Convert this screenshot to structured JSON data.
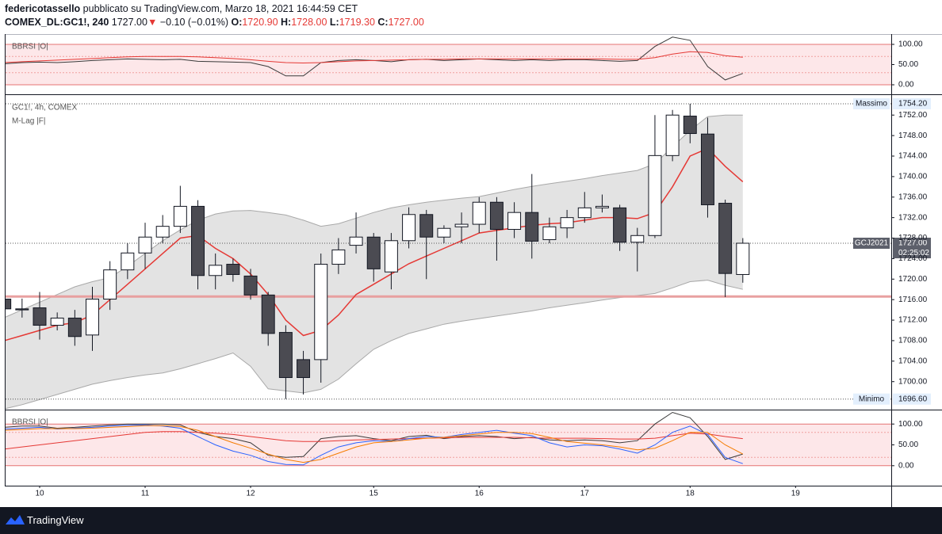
{
  "header": {
    "author": "federicotassello",
    "published": "pubblicato su TradingView.com, Marzo 18, 2021 16:44:59 CET",
    "symbol": "COMEX_DL:GC1!, 240",
    "last": "1727.00",
    "arrow": "▼",
    "change": "−0.10 (−0.01%)",
    "o_label": "O:",
    "o": "1720.90",
    "h_label": "H:",
    "h": "1728.00",
    "l_label": "L:",
    "l": "1719.30",
    "c_label": "C:",
    "c": "1727.00"
  },
  "footer": {
    "brand": "TradingView"
  },
  "chart_data": [
    {
      "type": "candlestick",
      "title": "GC1!, 4h, COMEX",
      "subtitle": "M-Lag |F|",
      "categories": [
        null,
        null,
        "10",
        null,
        null,
        null,
        null,
        null,
        "11",
        null,
        null,
        null,
        null,
        null,
        "12",
        null,
        null,
        null,
        null,
        null,
        null,
        "15",
        null,
        null,
        null,
        null,
        null,
        "16",
        null,
        null,
        null,
        null,
        null,
        "17",
        null,
        null,
        null,
        null,
        null,
        "18",
        null,
        null,
        null,
        null,
        null,
        "19"
      ],
      "open": [
        1716.1,
        1714.2,
        1714.4,
        1711,
        1712.4,
        1709.1,
        1716.1,
        1721.8,
        1725.1,
        1728.2,
        1730.3,
        1734.2,
        1720.7,
        1722.9,
        1720.6,
        1716.9,
        1709.6,
        1704.3,
        1704.3,
        1722.9,
        1726.6,
        1728.2,
        1721.4,
        1727.5,
        1732.6,
        1728.2,
        1730.2,
        1730.7,
        1735.0,
        1729.7,
        1733.0,
        1727.7,
        1730.0,
        1732.0,
        1733.9,
        1733.9,
        1727.2,
        1728.5,
        1744.1,
        1751.8,
        1748.3,
        1734.8,
        1720.9,
        null,
        null,
        null
      ],
      "high": [
        1716.5,
        1716.2,
        1717.5,
        1713.5,
        1714,
        1718.5,
        1723.5,
        1727,
        1731,
        1732.5,
        1738.2,
        1735.4,
        1725,
        1724,
        1722,
        1717.5,
        1711,
        1706,
        1725,
        1728,
        1733,
        1729,
        1729,
        1734,
        1733.5,
        1730.5,
        1733,
        1736,
        1736,
        1735,
        1740.5,
        1732,
        1733.5,
        1737,
        1736.5,
        1734.5,
        1730,
        1752,
        1753,
        1754.2,
        1751.5,
        1735.5,
        1728,
        null,
        null,
        null
      ],
      "low": [
        1713.5,
        1712.5,
        1708.2,
        1710,
        1707,
        1706,
        1714,
        1720,
        1722,
        1727,
        1729,
        1718,
        1718,
        1719.5,
        1716,
        1707,
        1696.6,
        1697.5,
        1699.8,
        1721,
        1725,
        1719.5,
        1718,
        1726,
        1720,
        1727,
        1727,
        1729,
        1723.6,
        1728,
        1724,
        1727,
        1728,
        1731,
        1733,
        1725.5,
        1721.5,
        1728,
        1743,
        1746.5,
        1732,
        1716.5,
        1719.3,
        null,
        null,
        null
      ],
      "close": [
        1714.2,
        1714.0,
        1711.0,
        1712.4,
        1708.8,
        1716.1,
        1721.8,
        1725.1,
        1728.2,
        1730.3,
        1734.2,
        1720.7,
        1722.7,
        1720.9,
        1716.9,
        1709.4,
        1700.8,
        1700.8,
        1722.9,
        1725.7,
        1728.2,
        1722.0,
        1727.5,
        1732.6,
        1728.2,
        1729.9,
        1730.7,
        1735.0,
        1729.7,
        1733.0,
        1727.4,
        1730.2,
        1732.0,
        1733.9,
        1734.2,
        1727.2,
        1728.5,
        1744.1,
        1752.0,
        1748.4,
        1734.5,
        1721.1,
        1727.0,
        null,
        null,
        null
      ],
      "up_color": "#ffffff",
      "down_color": "#4b4b52",
      "wick_color": "#131722",
      "band": {
        "color": "#d9d9d9",
        "upper": [
          1712.5,
          1714,
          1715.5,
          1717,
          1718.5,
          1719.5,
          1720.3,
          1722.5,
          1725,
          1727.5,
          1729.6,
          1731.5,
          1732.7,
          1733.3,
          1733.4,
          1733,
          1732.5,
          1731.5,
          1730.3,
          1730.8,
          1731.9,
          1733,
          1733.9,
          1734.5,
          1735,
          1735.4,
          1735.8,
          1736.1,
          1736.8,
          1737.5,
          1738.1,
          1738.6,
          1739.1,
          1739.6,
          1740.2,
          1740.7,
          1741.2,
          1742.5,
          1745.8,
          1749,
          1751.7,
          1752,
          1752,
          null,
          null,
          null
        ],
        "lower": [
          1694.7,
          1695.5,
          1696.5,
          1697.5,
          1698.5,
          1699.5,
          1700.2,
          1700.8,
          1701.3,
          1701.7,
          1702.5,
          1703.5,
          1704.5,
          1705.6,
          1703,
          1698.6,
          1698.2,
          1697.8,
          1698.5,
          1700.5,
          1703.5,
          1706.3,
          1708,
          1709.4,
          1710.3,
          1711.2,
          1711.8,
          1712.3,
          1712.8,
          1713.3,
          1713.8,
          1714.4,
          1714.9,
          1715.4,
          1715.9,
          1716.4,
          1716.8,
          1717.2,
          1718.3,
          1719.5,
          1719.8,
          1718.8,
          1718.0,
          null,
          null,
          null
        ]
      },
      "series": [
        {
          "color": "#e53935",
          "values": [
            1708,
            1709,
            1710,
            1711,
            1711.5,
            1713,
            1716,
            1719,
            1722,
            1725,
            1728,
            1728.5,
            1726,
            1724,
            1721,
            1717,
            1712,
            1709,
            1710,
            1713,
            1717,
            1719,
            1721,
            1723,
            1724.5,
            1726,
            1727.5,
            1729,
            1729.5,
            1730,
            1730.5,
            1730.8,
            1731,
            1731.5,
            1732,
            1732,
            1731.8,
            1733,
            1738,
            1744,
            1745.5,
            1742,
            1739,
            null,
            null,
            null
          ]
        }
      ],
      "hline": {
        "value": 1716.6,
        "color": "#e8a0a0"
      },
      "max_label": {
        "label": "Massimo",
        "value": 1754.2,
        "value_label": "1754.20"
      },
      "min_label": {
        "label": "Minimo",
        "value": 1696.6,
        "value_label": "1696.60"
      },
      "last_label": {
        "label": "GCJ2021",
        "value": 1727.0,
        "value_label": "1727.00",
        "countdown": "02:25:02"
      },
      "ylim": [
        1694.7,
        1755.9
      ],
      "yticks": [
        {
          "value": 1700,
          "label": "1700.00"
        },
        {
          "value": 1704,
          "label": "1704.00"
        },
        {
          "value": 1708,
          "label": "1708.00"
        },
        {
          "value": 1712,
          "label": "1712.00"
        },
        {
          "value": 1716,
          "label": "1716.00"
        },
        {
          "value": 1720,
          "label": "1720.00"
        },
        {
          "value": 1724,
          "label": "1724.00"
        },
        {
          "value": 1728,
          "label": "1728.00"
        },
        {
          "value": 1732,
          "label": "1732.00"
        },
        {
          "value": 1736,
          "label": "1736.00"
        },
        {
          "value": 1740,
          "label": "1740.00"
        },
        {
          "value": 1744,
          "label": "1744.00"
        },
        {
          "value": 1748,
          "label": "1748.00"
        },
        {
          "value": 1752,
          "label": "1752.00"
        }
      ],
      "grid": false
    },
    {
      "type": "line",
      "title": "BBRSI |O|",
      "ylim": [
        -21.6,
        121.6
      ],
      "yticks": [
        {
          "value": 0,
          "label": "0.00"
        },
        {
          "value": 50,
          "label": "50.00"
        },
        {
          "value": 100,
          "label": "100.00"
        }
      ],
      "levels": [
        100,
        70,
        30,
        0
      ],
      "zone_color": "#fde7e9",
      "series": [
        {
          "color": "#3a3a3a",
          "values": [
            52,
            55,
            56,
            55,
            57,
            60,
            62,
            64,
            63,
            62,
            63,
            58,
            57,
            56,
            55,
            45,
            22,
            22,
            55,
            60,
            62,
            60,
            57,
            62,
            63,
            60,
            62,
            64,
            62,
            60,
            62,
            60,
            62,
            62,
            60,
            58,
            60,
            95,
            118,
            110,
            45,
            12,
            28,
            null,
            null,
            null
          ]
        },
        {
          "color": "#e53935",
          "values": [
            55,
            57,
            59,
            61,
            63,
            65,
            67,
            69,
            70,
            70,
            70,
            69,
            67,
            65,
            62,
            58,
            55,
            54,
            55,
            57,
            59,
            60,
            61,
            62,
            63,
            63,
            64,
            64,
            64,
            64,
            64,
            64,
            64,
            64,
            64,
            63,
            63,
            67,
            76,
            82,
            80,
            72,
            68,
            null,
            null,
            null
          ]
        }
      ]
    },
    {
      "type": "line",
      "title": "BBRSI |O|",
      "ylim": [
        -46,
        130.8
      ],
      "yticks": [
        {
          "value": 0,
          "label": "0.00"
        },
        {
          "value": 50,
          "label": "50.00"
        },
        {
          "value": 100,
          "label": "100.00"
        }
      ],
      "levels": [
        100,
        80,
        20,
        0
      ],
      "zone_color": "#fde7e9",
      "series": [
        {
          "color": "#3a3a3a",
          "values": [
            92,
            95,
            95,
            90,
            92,
            95,
            98,
            100,
            100,
            100,
            98,
            80,
            70,
            65,
            55,
            25,
            20,
            22,
            65,
            70,
            72,
            65,
            60,
            70,
            73,
            65,
            70,
            72,
            70,
            65,
            68,
            62,
            60,
            62,
            60,
            55,
            60,
            100,
            128,
            115,
            70,
            15,
            28,
            null,
            null,
            null
          ]
        },
        {
          "color": "#e53935",
          "values": [
            40,
            45,
            50,
            55,
            60,
            65,
            70,
            75,
            80,
            82,
            82,
            80,
            78,
            75,
            70,
            65,
            60,
            58,
            58,
            60,
            62,
            63,
            64,
            65,
            66,
            67,
            68,
            68,
            68,
            68,
            67,
            66,
            66,
            66,
            65,
            64,
            64,
            66,
            72,
            78,
            76,
            70,
            65,
            null,
            null,
            null
          ]
        },
        {
          "color": "#2962ff",
          "values": [
            88,
            90,
            92,
            88,
            90,
            92,
            95,
            97,
            98,
            95,
            90,
            70,
            50,
            35,
            25,
            10,
            3,
            2,
            25,
            45,
            55,
            60,
            58,
            65,
            70,
            68,
            75,
            80,
            85,
            78,
            72,
            55,
            45,
            50,
            48,
            40,
            30,
            50,
            80,
            95,
            75,
            20,
            5,
            null,
            null,
            null
          ]
        },
        {
          "color": "#f57c00",
          "values": [
            85,
            87,
            89,
            89,
            89,
            90,
            92,
            94,
            96,
            96,
            94,
            85,
            70,
            55,
            42,
            28,
            15,
            8,
            15,
            30,
            45,
            55,
            58,
            62,
            66,
            68,
            72,
            76,
            80,
            80,
            77,
            68,
            58,
            54,
            50,
            45,
            38,
            42,
            60,
            80,
            80,
            50,
            28,
            null,
            null,
            null
          ]
        }
      ]
    }
  ]
}
